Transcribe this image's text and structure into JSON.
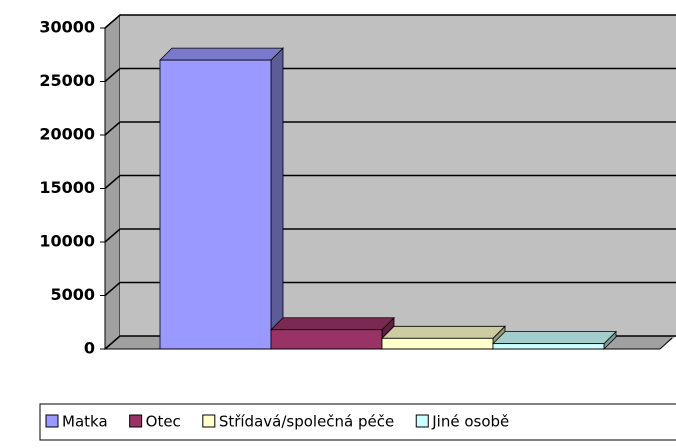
{
  "chart_data": {
    "type": "bar",
    "series": [
      {
        "name": "Matka",
        "color": "#9999ff",
        "values": [
          27000
        ]
      },
      {
        "name": "Otec",
        "color": "#993366",
        "values": [
          1800
        ]
      },
      {
        "name": "Střídavá/společná péče",
        "color": "#ffffcc",
        "values": [
          1000
        ]
      },
      {
        "name": "Jiné osobě",
        "color": "#ccffff",
        "values": [
          500
        ]
      }
    ],
    "ylim": [
      0,
      30000
    ],
    "yticks": [
      0,
      5000,
      10000,
      15000,
      20000,
      25000,
      30000
    ],
    "grid": true
  }
}
